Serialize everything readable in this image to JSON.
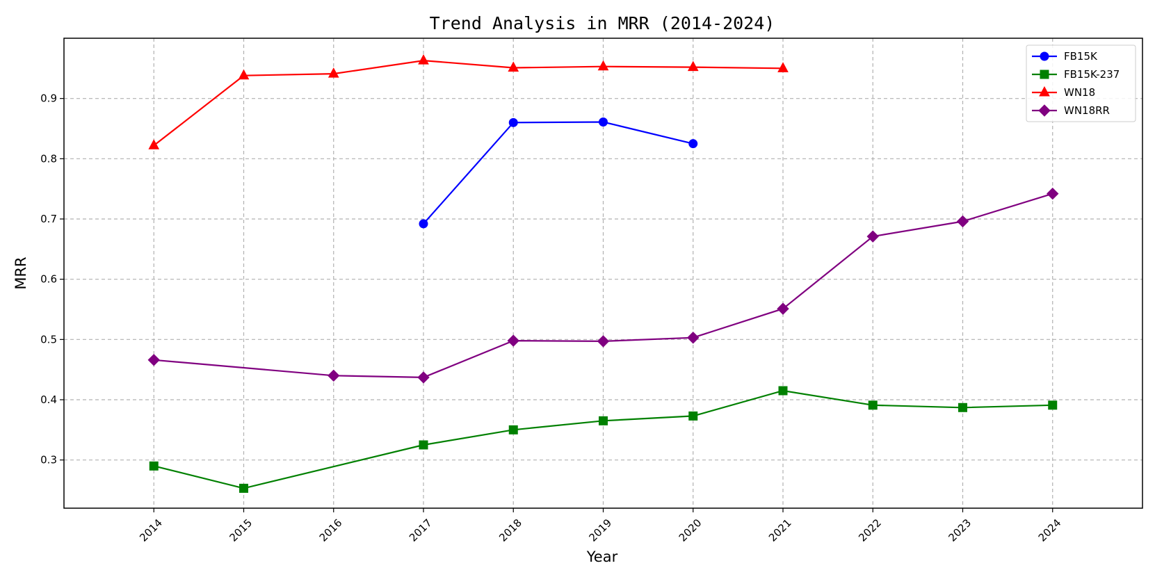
{
  "chart_data": {
    "type": "line",
    "title": "Trend Analysis in MRR (2014-2024)",
    "xlabel": "Year",
    "ylabel": "MRR",
    "categories": [
      "2014",
      "2015",
      "2016",
      "2017",
      "2018",
      "2019",
      "2020",
      "2021",
      "2022",
      "2023",
      "2024"
    ],
    "xlim": [
      2013,
      2025
    ],
    "ylim": [
      0.22,
      1.0
    ],
    "yticks": [
      0.3,
      0.4,
      0.5,
      0.6,
      0.7,
      0.8,
      0.9
    ],
    "grid": true,
    "legend_position": "top-right",
    "series": [
      {
        "name": "FB15K",
        "color": "#0000ff",
        "marker": "circle",
        "points": [
          [
            2017,
            0.692
          ],
          [
            2018,
            0.86
          ],
          [
            2019,
            0.861
          ],
          [
            2020,
            0.825
          ]
        ]
      },
      {
        "name": "FB15K-237",
        "color": "#008000",
        "marker": "square",
        "points": [
          [
            2014,
            0.29
          ],
          [
            2015,
            0.253
          ],
          [
            2017,
            0.325
          ],
          [
            2018,
            0.35
          ],
          [
            2019,
            0.365
          ],
          [
            2020,
            0.373
          ],
          [
            2021,
            0.415
          ],
          [
            2022,
            0.391
          ],
          [
            2023,
            0.387
          ],
          [
            2024,
            0.391
          ]
        ]
      },
      {
        "name": "WN18",
        "color": "#ff0000",
        "marker": "triangle",
        "points": [
          [
            2014,
            0.822
          ],
          [
            2015,
            0.938
          ],
          [
            2016,
            0.941
          ],
          [
            2017,
            0.963
          ],
          [
            2018,
            0.951
          ],
          [
            2019,
            0.953
          ],
          [
            2020,
            0.952
          ],
          [
            2021,
            0.95
          ]
        ]
      },
      {
        "name": "WN18RR",
        "color": "#800080",
        "marker": "diamond",
        "points": [
          [
            2014,
            0.466
          ],
          [
            2016,
            0.44
          ],
          [
            2017,
            0.437
          ],
          [
            2018,
            0.498
          ],
          [
            2019,
            0.497
          ],
          [
            2020,
            0.503
          ],
          [
            2021,
            0.551
          ],
          [
            2022,
            0.671
          ],
          [
            2023,
            0.696
          ],
          [
            2024,
            0.742
          ]
        ]
      }
    ]
  }
}
